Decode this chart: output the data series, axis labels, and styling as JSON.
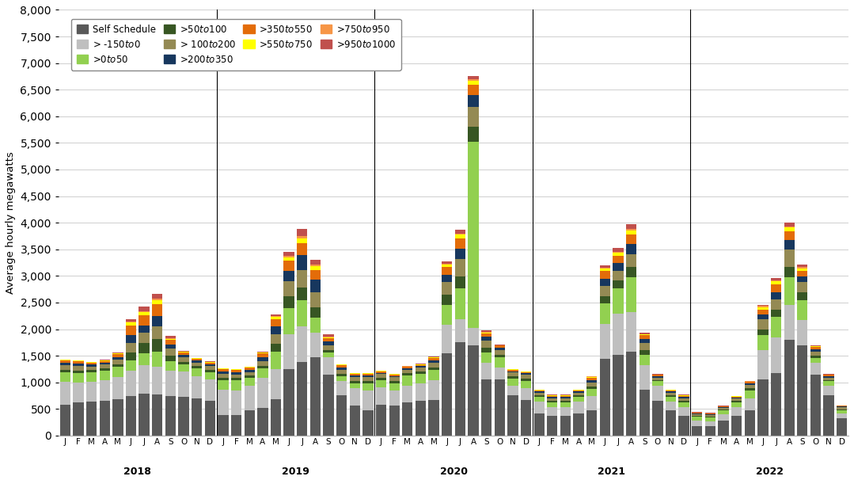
{
  "ylabel": "Average hourly megawatts",
  "ylim": [
    0,
    8000
  ],
  "yticks": [
    0,
    500,
    1000,
    1500,
    2000,
    2500,
    3000,
    3500,
    4000,
    4500,
    5000,
    5500,
    6000,
    6500,
    7000,
    7500,
    8000
  ],
  "months": [
    "J",
    "F",
    "M",
    "A",
    "M",
    "J",
    "J",
    "A",
    "S",
    "O",
    "N",
    "D",
    "J",
    "F",
    "M",
    "A",
    "M",
    "J",
    "J",
    "A",
    "S",
    "O",
    "N",
    "D",
    "J",
    "F",
    "M",
    "A",
    "M",
    "J",
    "J",
    "A",
    "S",
    "O",
    "N",
    "D",
    "J",
    "F",
    "M",
    "A",
    "M",
    "J",
    "J",
    "A",
    "S",
    "O",
    "N",
    "D",
    "J",
    "F",
    "M",
    "A",
    "M",
    "J",
    "J",
    "A",
    "S",
    "O",
    "N",
    "D"
  ],
  "years": [
    "2018",
    "2019",
    "2020",
    "2021",
    "2022"
  ],
  "year_positions": [
    5.5,
    17.5,
    29.5,
    41.5,
    53.5
  ],
  "separators": [
    12,
    24,
    36,
    48
  ],
  "series": {
    "Self Schedule": {
      "color": "#595959",
      "values": [
        580,
        620,
        640,
        660,
        680,
        750,
        790,
        780,
        740,
        730,
        700,
        660,
        380,
        380,
        470,
        520,
        680,
        1250,
        1380,
        1470,
        1150,
        760,
        570,
        470,
        580,
        570,
        620,
        660,
        670,
        1550,
        1750,
        1700,
        1050,
        1050,
        760,
        670,
        420,
        370,
        370,
        420,
        470,
        1450,
        1520,
        1570,
        860,
        660,
        470,
        370,
        180,
        175,
        280,
        370,
        480,
        1050,
        1180,
        1800,
        1700,
        1150,
        760,
        320
      ]
    },
    "> -$150 to $0": {
      "color": "#bfbfbf",
      "values": [
        430,
        380,
        370,
        380,
        420,
        470,
        530,
        520,
        480,
        470,
        420,
        390,
        480,
        470,
        470,
        560,
        570,
        660,
        680,
        470,
        320,
        270,
        320,
        370,
        320,
        270,
        320,
        320,
        370,
        530,
        430,
        320,
        320,
        230,
        170,
        220,
        220,
        170,
        170,
        220,
        270,
        650,
        770,
        750,
        470,
        270,
        170,
        170,
        100,
        90,
        120,
        170,
        220,
        560,
        670,
        660,
        470,
        220,
        170,
        90
      ]
    },
    ">$0 to $50": {
      "color": "#92d050",
      "values": [
        180,
        175,
        175,
        180,
        190,
        195,
        230,
        280,
        185,
        140,
        140,
        140,
        185,
        185,
        140,
        185,
        330,
        480,
        480,
        280,
        90,
        90,
        90,
        140,
        140,
        140,
        185,
        185,
        190,
        380,
        580,
        3500,
        185,
        185,
        140,
        140,
        90,
        90,
        90,
        90,
        140,
        380,
        480,
        660,
        185,
        90,
        90,
        90,
        70,
        70,
        70,
        90,
        140,
        280,
        380,
        520,
        380,
        90,
        90,
        70
      ]
    },
    ">$50 to $100": {
      "color": "#375623",
      "values": [
        45,
        45,
        45,
        45,
        45,
        140,
        190,
        235,
        90,
        45,
        45,
        45,
        45,
        45,
        45,
        45,
        140,
        235,
        235,
        190,
        45,
        45,
        45,
        45,
        45,
        45,
        45,
        45,
        45,
        190,
        235,
        280,
        90,
        45,
        45,
        45,
        25,
        25,
        25,
        25,
        45,
        140,
        140,
        190,
        90,
        25,
        25,
        25,
        15,
        15,
        15,
        25,
        45,
        110,
        140,
        190,
        140,
        45,
        25,
        15
      ]
    },
    "> $100 to $200": {
      "color": "#948a54",
      "values": [
        90,
        90,
        70,
        70,
        90,
        190,
        190,
        235,
        140,
        90,
        70,
        70,
        70,
        70,
        70,
        90,
        190,
        280,
        330,
        280,
        90,
        70,
        70,
        70,
        70,
        70,
        70,
        70,
        90,
        235,
        330,
        370,
        140,
        90,
        70,
        70,
        45,
        45,
        45,
        45,
        70,
        190,
        190,
        235,
        140,
        45,
        45,
        45,
        35,
        35,
        35,
        45,
        70,
        190,
        190,
        330,
        190,
        70,
        45,
        35
      ]
    },
    ">$200 to $350": {
      "color": "#17375e",
      "values": [
        45,
        45,
        35,
        35,
        45,
        140,
        140,
        190,
        70,
        45,
        35,
        35,
        45,
        45,
        45,
        70,
        140,
        190,
        280,
        235,
        70,
        45,
        35,
        35,
        25,
        25,
        25,
        25,
        45,
        140,
        190,
        235,
        70,
        45,
        25,
        25,
        25,
        25,
        25,
        25,
        45,
        140,
        140,
        190,
        70,
        25,
        25,
        25,
        15,
        15,
        15,
        15,
        25,
        90,
        140,
        170,
        110,
        45,
        25,
        15
      ]
    },
    ">$350 to $550": {
      "color": "#e36c09",
      "values": [
        45,
        45,
        35,
        35,
        55,
        190,
        190,
        235,
        90,
        45,
        35,
        35,
        45,
        45,
        45,
        70,
        140,
        190,
        235,
        190,
        70,
        45,
        35,
        35,
        25,
        25,
        25,
        25,
        45,
        140,
        190,
        190,
        70,
        45,
        25,
        25,
        25,
        25,
        25,
        25,
        45,
        140,
        140,
        190,
        70,
        25,
        25,
        25,
        15,
        15,
        15,
        15,
        25,
        90,
        140,
        170,
        110,
        45,
        25,
        15
      ]
    },
    ">$550 to $750": {
      "color": "#ffff00",
      "values": [
        8,
        8,
        8,
        8,
        15,
        45,
        55,
        70,
        25,
        8,
        8,
        8,
        8,
        8,
        8,
        15,
        45,
        70,
        90,
        70,
        15,
        8,
        8,
        8,
        8,
        8,
        8,
        8,
        15,
        45,
        70,
        70,
        15,
        8,
        8,
        8,
        8,
        8,
        8,
        8,
        15,
        45,
        55,
        70,
        15,
        8,
        8,
        8,
        4,
        4,
        4,
        8,
        12,
        45,
        55,
        70,
        45,
        12,
        8,
        4
      ]
    },
    ">$750 to $950": {
      "color": "#f79646",
      "values": [
        4,
        4,
        4,
        4,
        8,
        18,
        18,
        25,
        12,
        4,
        4,
        4,
        4,
        4,
        4,
        8,
        18,
        25,
        35,
        25,
        8,
        4,
        4,
        4,
        4,
        4,
        4,
        4,
        8,
        18,
        25,
        25,
        8,
        4,
        4,
        4,
        4,
        4,
        4,
        4,
        8,
        18,
        18,
        25,
        8,
        4,
        4,
        4,
        2,
        2,
        2,
        4,
        6,
        18,
        18,
        25,
        18,
        6,
        4,
        2
      ]
    },
    ">$950 to $1000": {
      "color": "#c0504d",
      "values": [
        4,
        4,
        4,
        4,
        8,
        45,
        90,
        90,
        45,
        8,
        4,
        4,
        4,
        4,
        4,
        8,
        25,
        70,
        140,
        90,
        45,
        8,
        4,
        4,
        4,
        4,
        4,
        4,
        8,
        45,
        70,
        70,
        25,
        8,
        4,
        4,
        4,
        4,
        4,
        4,
        8,
        45,
        70,
        90,
        25,
        8,
        4,
        4,
        2,
        2,
        2,
        4,
        6,
        25,
        45,
        70,
        45,
        8,
        4,
        2
      ]
    }
  },
  "background_color": "#ffffff",
  "grid_color": "#d3d3d3"
}
